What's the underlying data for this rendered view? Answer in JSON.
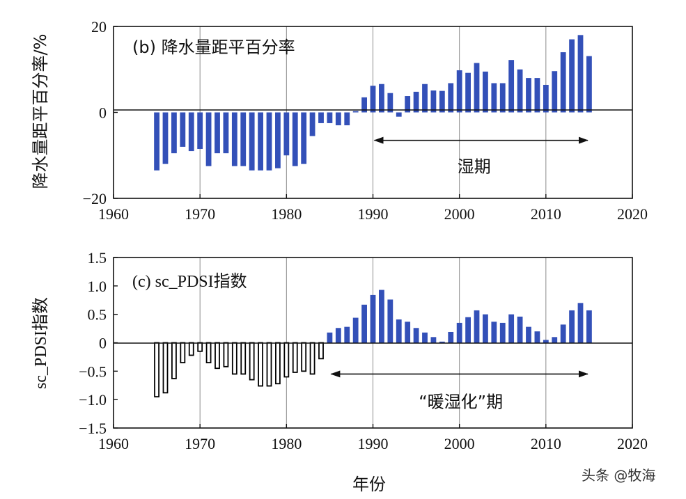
{
  "chart_data": [
    {
      "type": "bar",
      "title": "(b) 降水量距平百分率",
      "ylabel": "降水量距平百分率/%",
      "xlabel": "",
      "xlim": [
        1960,
        2020
      ],
      "ylim": [
        -20,
        20
      ],
      "xticks": [
        1960,
        1970,
        1980,
        1990,
        2000,
        2010,
        2020
      ],
      "yticks": [
        -20,
        0,
        20
      ],
      "grid": "vertical-at-decades",
      "bar_color": "#3350b8",
      "annotation": {
        "label": "湿期",
        "from": 1990,
        "to": 2015,
        "y": -6.5
      },
      "x": [
        1965,
        1966,
        1967,
        1968,
        1969,
        1970,
        1971,
        1972,
        1973,
        1974,
        1975,
        1976,
        1977,
        1978,
        1979,
        1980,
        1981,
        1982,
        1983,
        1984,
        1985,
        1986,
        1987,
        1988,
        1989,
        1990,
        1991,
        1992,
        1993,
        1994,
        1995,
        1996,
        1997,
        1998,
        1999,
        2000,
        2001,
        2002,
        2003,
        2004,
        2005,
        2006,
        2007,
        2008,
        2009,
        2010,
        2011,
        2012,
        2013,
        2014,
        2015
      ],
      "values": [
        -13.5,
        -12,
        -9.5,
        -8,
        -9,
        -8.5,
        -12.5,
        -9.5,
        -9.5,
        -12.5,
        -12.5,
        -13.5,
        -13.5,
        -13.5,
        -13,
        -10,
        -12.5,
        -12,
        -5.5,
        -2.5,
        -2.5,
        -3,
        -3,
        0.3,
        3.5,
        6.2,
        6.6,
        4.5,
        -1,
        3.8,
        4.8,
        6.6,
        5.1,
        5,
        6.8,
        9.8,
        9.2,
        11.5,
        9.5,
        6.8,
        6.8,
        12.2,
        10,
        8,
        8,
        6.4,
        9.6,
        14,
        17,
        18,
        13.1
      ]
    },
    {
      "type": "bar",
      "title": "(c) sc_PDSI指数",
      "ylabel": "sc_PDSI指数",
      "xlabel": "年份",
      "xlim": [
        1960,
        2020
      ],
      "ylim": [
        -1.5,
        1.5
      ],
      "xticks": [
        1960,
        1970,
        1980,
        1990,
        2000,
        2010,
        2020
      ],
      "yticks": [
        "1.5",
        "1.0",
        "0.5",
        "0",
        "-0.5",
        "-1.0",
        "-1.5"
      ],
      "grid": "vertical-at-decades",
      "colors": {
        "early_outline": "#000000",
        "late_fill": "#3350b8"
      },
      "annotation": {
        "label": "“暖湿化”期",
        "from": 1985,
        "to": 2015,
        "y": -0.55
      },
      "series": [
        {
          "style": "hollow-black",
          "x": [
            1965,
            1966,
            1967,
            1968,
            1969,
            1970,
            1971,
            1972,
            1973,
            1974,
            1975,
            1976,
            1977,
            1978,
            1979,
            1980,
            1981,
            1982,
            1983,
            1984
          ],
          "values": [
            -0.95,
            -0.88,
            -0.63,
            -0.35,
            -0.22,
            -0.15,
            -0.35,
            -0.45,
            -0.42,
            -0.55,
            -0.55,
            -0.65,
            -0.76,
            -0.76,
            -0.72,
            -0.6,
            -0.52,
            -0.5,
            -0.55,
            -0.28
          ]
        },
        {
          "style": "filled-blue",
          "x": [
            1985,
            1986,
            1987,
            1988,
            1989,
            1990,
            1991,
            1992,
            1993,
            1994,
            1995,
            1996,
            1997,
            1998,
            1999,
            2000,
            2001,
            2002,
            2003,
            2004,
            2005,
            2006,
            2007,
            2008,
            2009,
            2010,
            2011,
            2012,
            2013,
            2014,
            2015
          ],
          "values": [
            0.18,
            0.26,
            0.28,
            0.44,
            0.67,
            0.84,
            0.93,
            0.76,
            0.41,
            0.37,
            0.26,
            0.18,
            0.1,
            0.02,
            0.19,
            0.35,
            0.45,
            0.57,
            0.5,
            0.37,
            0.35,
            0.5,
            0.46,
            0.28,
            0.2,
            0.05,
            0.1,
            0.32,
            0.57,
            0.7,
            0.57
          ]
        }
      ]
    }
  ],
  "watermark": "头条 @牧海"
}
